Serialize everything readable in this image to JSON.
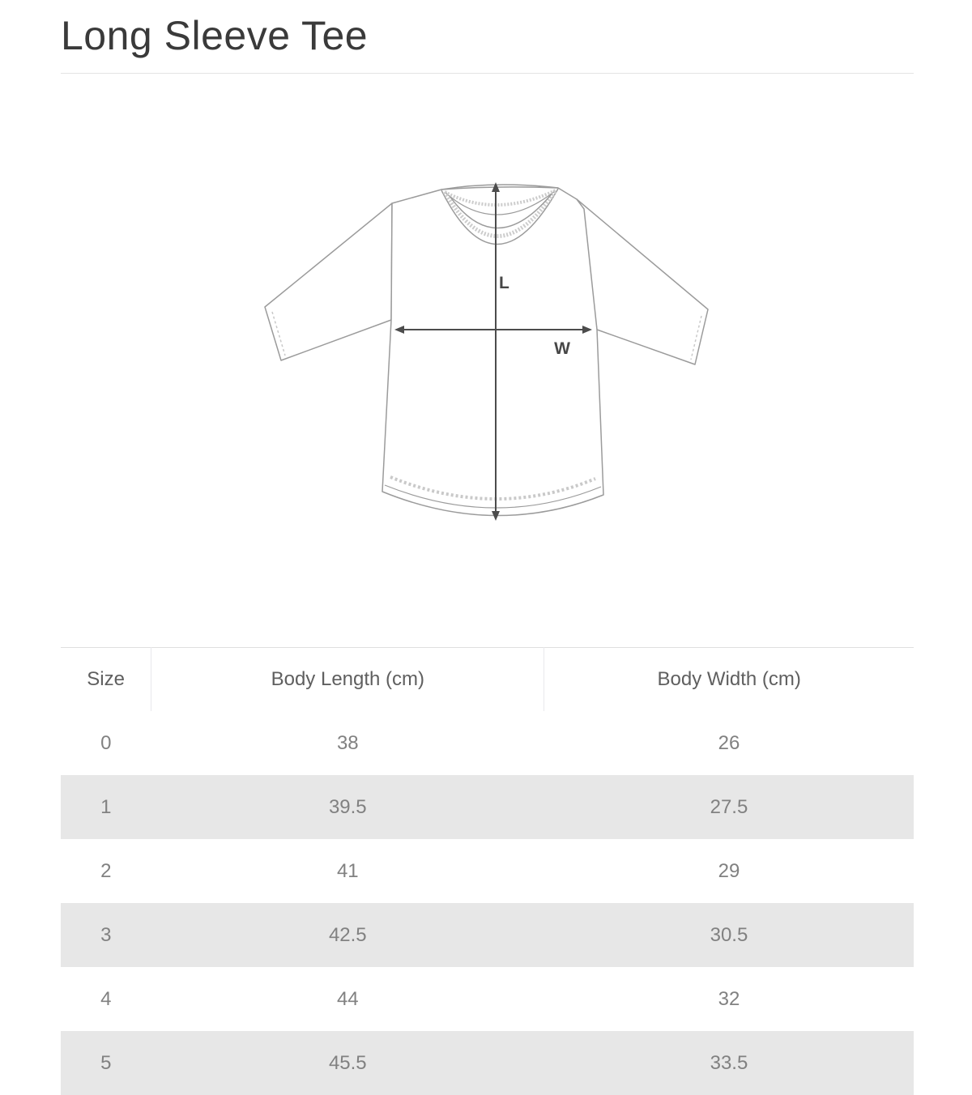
{
  "page": {
    "title": "Long Sleeve Tee"
  },
  "diagram": {
    "description": "line drawing of a long sleeve tee with body length and body width measurement arrows",
    "length_label": "L",
    "width_label": "W"
  },
  "size_table": {
    "columns": [
      "Size",
      "Body Length (cm)",
      "Body Width (cm)"
    ],
    "rows": [
      [
        "0",
        "38",
        "26"
      ],
      [
        "1",
        "39.5",
        "27.5"
      ],
      [
        "2",
        "41",
        "29"
      ],
      [
        "3",
        "42.5",
        "30.5"
      ],
      [
        "4",
        "44",
        "32"
      ],
      [
        "5",
        "45.5",
        "33.5"
      ]
    ]
  },
  "colors": {
    "title_text": "#3a3a3a",
    "divider": "#e4e4e4",
    "header_text": "#5f5f5f",
    "cell_text": "#818181",
    "row_stripe": "#e7e7e7",
    "header_divider": "#e8e8ec",
    "garment_outline": "#9b9b9b",
    "stitch_detail": "#c9c9c9",
    "arrow": "#4c4c4c"
  }
}
